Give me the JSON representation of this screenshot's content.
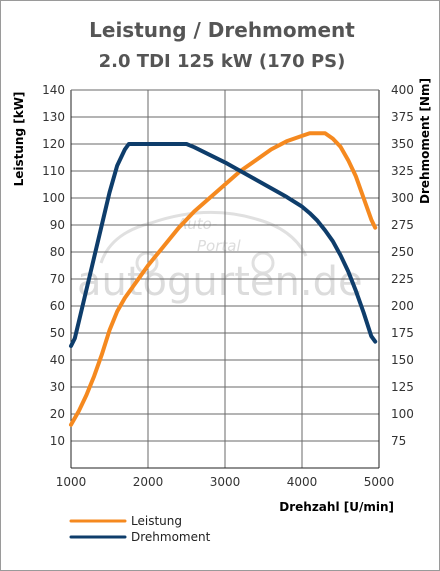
{
  "chart_data": {
    "type": "line",
    "title": "Leistung / Drehmoment",
    "subtitle": "2.0 TDI 125 kW (170 PS)",
    "xlabel": "Drehzahl [U/min]",
    "ylabel_left": "Leistung [kW]",
    "ylabel_right": "Drehmoment [Nm]",
    "xlim": [
      1000,
      5000
    ],
    "ylim_left": [
      0,
      140
    ],
    "ylim_right": [
      50,
      400
    ],
    "x_ticks": [
      "1000",
      "2000",
      "3000",
      "4000",
      "5000"
    ],
    "y_left_ticks": [
      "10",
      "20",
      "30",
      "40",
      "50",
      "60",
      "70",
      "80",
      "90",
      "100",
      "110",
      "120",
      "130",
      "140"
    ],
    "y_right_ticks": [
      "75",
      "100",
      "125",
      "150",
      "175",
      "200",
      "225",
      "250",
      "275",
      "300",
      "325",
      "350",
      "375",
      "400"
    ],
    "grid": true,
    "legend_position": "bottom-left",
    "watermark": "Auto-Portal autogurten.de",
    "series": [
      {
        "name": "Leistung",
        "axis": "left",
        "color": "#f5891f",
        "x": [
          1000,
          1100,
          1200,
          1300,
          1400,
          1500,
          1600,
          1700,
          1800,
          1900,
          2000,
          2200,
          2400,
          2600,
          2800,
          3000,
          3200,
          3400,
          3600,
          3800,
          4000,
          4100,
          4200,
          4300,
          4400,
          4500,
          4600,
          4700,
          4800,
          4900,
          4950
        ],
        "values": [
          16,
          21,
          27,
          34,
          42,
          51,
          58,
          63,
          67,
          71,
          75,
          82,
          89,
          95,
          100,
          105,
          110,
          114,
          118,
          121,
          123,
          124,
          124,
          124,
          122,
          119,
          114,
          108,
          100,
          92,
          89
        ]
      },
      {
        "name": "Drehmoment",
        "axis": "right",
        "color": "#0e3d6b",
        "x": [
          1000,
          1050,
          1100,
          1200,
          1300,
          1400,
          1500,
          1600,
          1700,
          1750,
          1800,
          2000,
          2200,
          2400,
          2500,
          2600,
          2800,
          3000,
          3200,
          3400,
          3600,
          3800,
          4000,
          4100,
          4200,
          4300,
          4400,
          4500,
          4600,
          4700,
          4800,
          4900,
          4950
        ],
        "values": [
          163,
          170,
          185,
          215,
          245,
          275,
          305,
          330,
          345,
          350,
          350,
          350,
          350,
          350,
          350,
          347,
          340,
          333,
          325,
          317,
          309,
          301,
          292,
          286,
          279,
          270,
          260,
          247,
          232,
          214,
          194,
          172,
          167
        ]
      }
    ]
  }
}
